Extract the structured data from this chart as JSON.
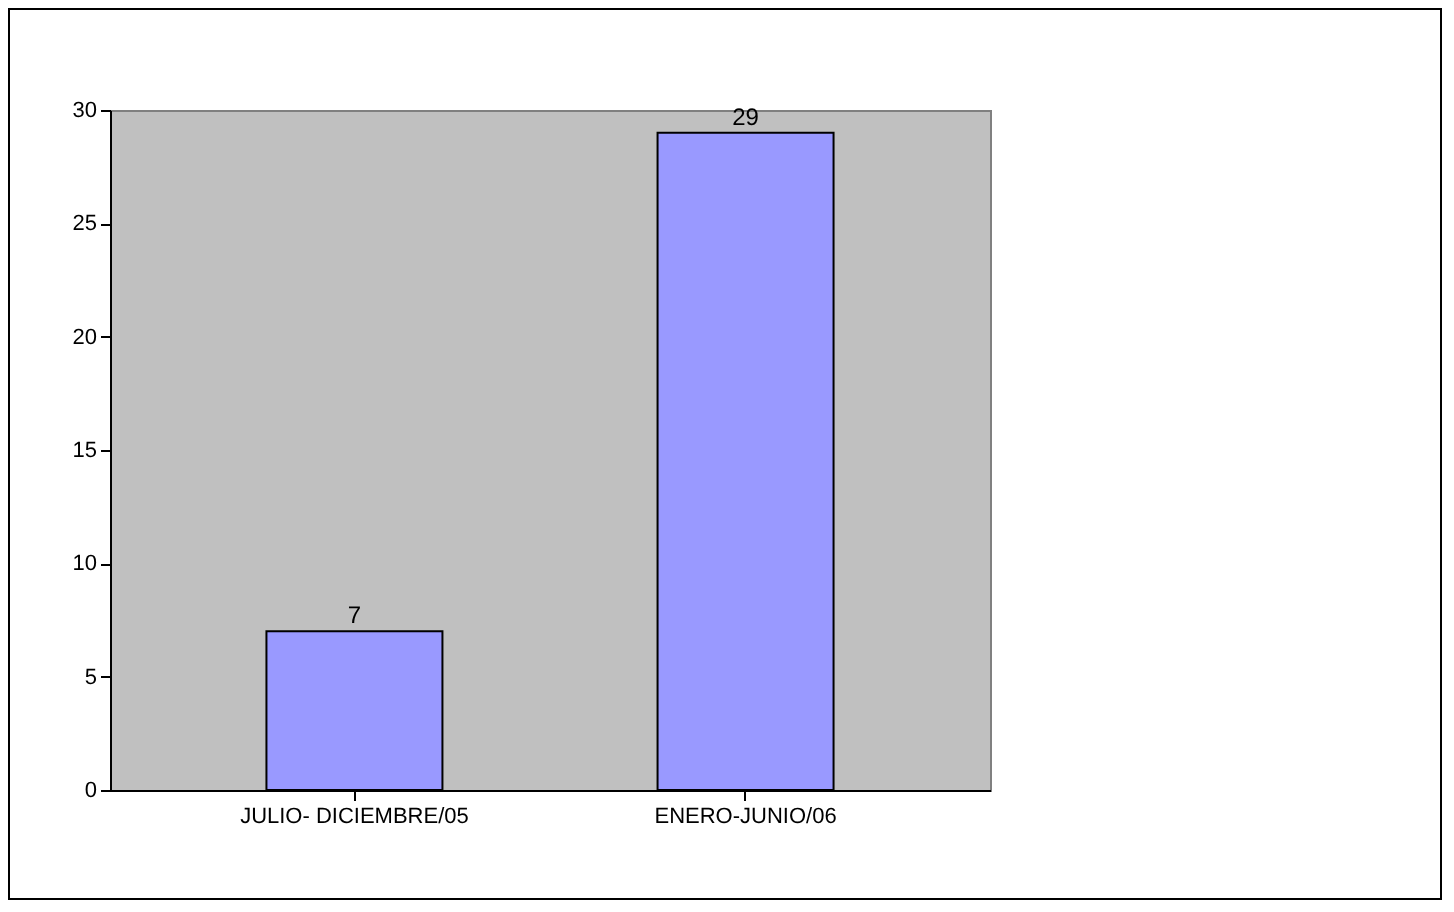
{
  "chart_data": {
    "type": "bar",
    "categories": [
      "JULIO- DICIEMBRE/05",
      "ENERO-JUNIO/06"
    ],
    "values": [
      7,
      29
    ],
    "color": "#9999ff",
    "ylim": [
      0,
      30
    ],
    "yticks": [
      0,
      5,
      10,
      15,
      20,
      25,
      30
    ],
    "data_labels": true,
    "grid": false
  }
}
